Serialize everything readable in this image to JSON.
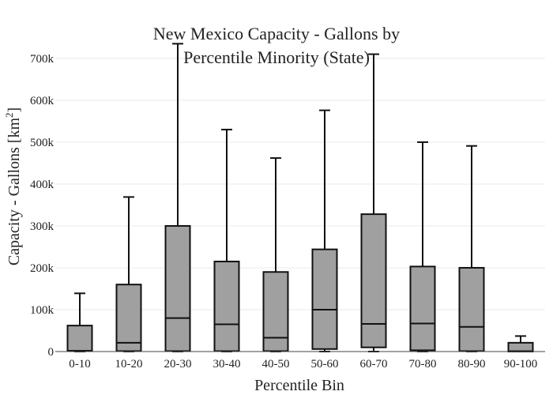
{
  "chart_data": {
    "type": "box",
    "title": "New Mexico Capacity - Gallons by Percentile Minority (State)",
    "title_lines": [
      "New Mexico Capacity - Gallons by",
      "Percentile Minority (State)"
    ],
    "xlabel": "Percentile Bin",
    "ylabel": "Capacity - Gallons  [km",
    "ylabel_sup": "2",
    "ylabel_close": "]",
    "ylim": [
      0,
      730000
    ],
    "yticks": [
      0,
      100000,
      200000,
      300000,
      400000,
      500000,
      600000,
      700000
    ],
    "ytick_labels": [
      "0",
      "100k",
      "200k",
      "300k",
      "400k",
      "500k",
      "600k",
      "700k"
    ],
    "grid": true,
    "box_color": "#a0a0a0",
    "line_color": "#111111",
    "categories": [
      "0-10",
      "10-20",
      "20-30",
      "30-40",
      "40-50",
      "50-60",
      "60-70",
      "70-80",
      "80-90",
      "90-100"
    ],
    "boxes": [
      {
        "min": 0,
        "q1": 1000,
        "median": 2000,
        "q3": 62000,
        "max": 139000
      },
      {
        "min": 0,
        "q1": 1000,
        "median": 21000,
        "q3": 160000,
        "max": 369000
      },
      {
        "min": 0,
        "q1": 1000,
        "median": 80000,
        "q3": 300000,
        "max": 735000
      },
      {
        "min": 0,
        "q1": 1000,
        "median": 65000,
        "q3": 215000,
        "max": 530000
      },
      {
        "min": 0,
        "q1": 1000,
        "median": 33000,
        "q3": 190000,
        "max": 462000
      },
      {
        "min": 0,
        "q1": 6000,
        "median": 100000,
        "q3": 244000,
        "max": 576000
      },
      {
        "min": 0,
        "q1": 10000,
        "median": 66000,
        "q3": 328000,
        "max": 710000
      },
      {
        "min": 0,
        "q1": 3000,
        "median": 67000,
        "q3": 203000,
        "max": 500000
      },
      {
        "min": 0,
        "q1": 1000,
        "median": 59000,
        "q3": 200000,
        "max": 491000
      },
      {
        "min": 0,
        "q1": 0,
        "median": 1000,
        "q3": 21000,
        "max": 37000
      }
    ]
  }
}
